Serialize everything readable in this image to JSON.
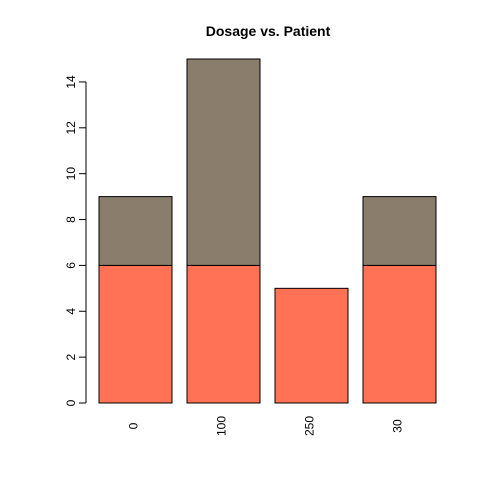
{
  "chart_data": {
    "type": "bar",
    "stacked": true,
    "title": "Dosage vs. Patient",
    "xlabel": "",
    "ylabel": "",
    "categories": [
      "0",
      "100",
      "250",
      "30"
    ],
    "series": [
      {
        "values": [
          6,
          6,
          5,
          6
        ],
        "color": "#FF7256"
      },
      {
        "values": [
          3,
          9,
          0,
          3
        ],
        "color": "#8B7D6B"
      }
    ],
    "ylim": [
      0,
      15
    ],
    "yticks": [
      0,
      2,
      4,
      6,
      8,
      10,
      12,
      14
    ],
    "grid": false,
    "legend": "none"
  }
}
